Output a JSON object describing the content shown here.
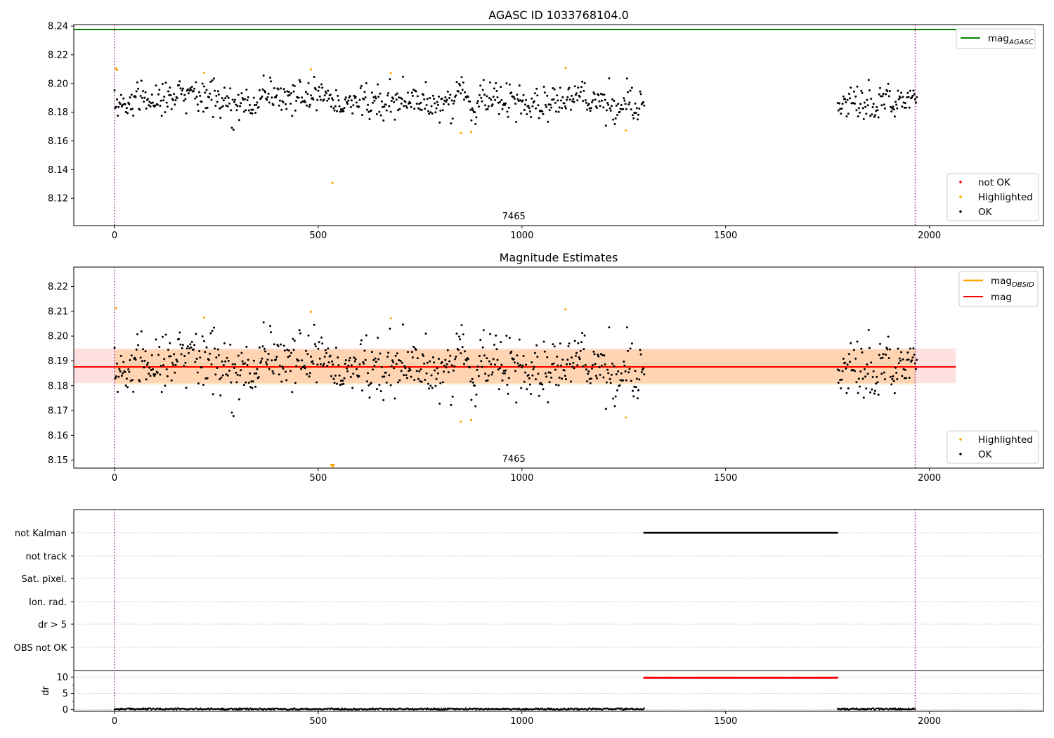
{
  "chart_data": [
    {
      "id": "p1",
      "type": "scatter",
      "title": "AGASC ID 1033768104.0",
      "xlim": [
        -100,
        2280
      ],
      "ylim": [
        8.101,
        8.241
      ],
      "xticks": [
        0,
        500,
        1000,
        1500,
        2000
      ],
      "yticks": [
        8.12,
        8.14,
        8.16,
        8.18,
        8.2,
        8.22,
        8.24
      ],
      "ytick_labels": [
        "8.12",
        "8.14",
        "8.16",
        "8.18",
        "8.20",
        "8.22",
        "8.24"
      ],
      "obsid_label": "7465",
      "obsid_label_x": 980,
      "vlines": [
        0,
        1965
      ],
      "lines": [
        {
          "name": "mag",
          "sub": "AGASC",
          "color": "#008000",
          "y": 8.2376,
          "x0": -100,
          "x1": 2280
        }
      ],
      "line_legend": [
        "mag_AGASC"
      ],
      "points_legend": [
        {
          "label": "not OK",
          "color": "#ff0000"
        },
        {
          "label": "Highlighted",
          "color": "#ffa500"
        },
        {
          "label": "OK",
          "color": "#000000"
        }
      ],
      "highlighted": [
        {
          "x": 4,
          "y": 8.2105
        },
        {
          "x": 6,
          "y": 8.2095
        },
        {
          "x": 220,
          "y": 8.2075
        },
        {
          "x": 482,
          "y": 8.2098
        },
        {
          "x": 535,
          "y": 8.1308
        },
        {
          "x": 678,
          "y": 8.2072
        },
        {
          "x": 850,
          "y": 8.1655
        },
        {
          "x": 875,
          "y": 8.1662
        },
        {
          "x": 1107,
          "y": 8.2108
        },
        {
          "x": 1255,
          "y": 8.1672
        }
      ],
      "ok_segments": [
        {
          "x0": 0,
          "x1": 1300,
          "center": 8.188,
          "spread": 0.0085
        },
        {
          "x0": 1775,
          "x1": 1970,
          "center": 8.187,
          "spread": 0.0085
        }
      ]
    },
    {
      "id": "p2",
      "type": "scatter",
      "title": "Magnitude Estimates",
      "xlim": [
        -100,
        2280
      ],
      "ylim": [
        8.1468,
        8.2278
      ],
      "xticks": [
        0,
        500,
        1000,
        1500,
        2000
      ],
      "yticks": [
        8.15,
        8.16,
        8.17,
        8.18,
        8.19,
        8.2,
        8.21,
        8.22
      ],
      "ytick_labels": [
        "8.15",
        "8.16",
        "8.17",
        "8.18",
        "8.19",
        "8.20",
        "8.21",
        "8.22"
      ],
      "obsid_label": "7465",
      "obsid_label_x": 980,
      "vlines": [
        0,
        1965
      ],
      "mag": 8.1876,
      "mag_band": [
        8.181,
        8.195
      ],
      "mag_obsid_band": [
        8.1805,
        8.1945
      ],
      "band_x": [
        -100,
        2065
      ],
      "obsid_band_x": [
        0,
        1965
      ],
      "line_legend": [
        {
          "name": "mag",
          "sub": "OBSID",
          "color": "#ffa500"
        },
        {
          "name": "mag",
          "sub": "",
          "color": "#ff0000"
        }
      ],
      "points_legend": [
        {
          "label": "Highlighted",
          "color": "#ffa500"
        },
        {
          "label": "OK",
          "color": "#000000"
        }
      ],
      "highlighted": [
        {
          "x": 4,
          "y": 8.2112
        },
        {
          "x": 220,
          "y": 8.2075
        },
        {
          "x": 482,
          "y": 8.2098
        },
        {
          "x": 678,
          "y": 8.2072
        },
        {
          "x": 850,
          "y": 8.1655
        },
        {
          "x": 875,
          "y": 8.1662
        },
        {
          "x": 1107,
          "y": 8.2108
        },
        {
          "x": 1255,
          "y": 8.1672
        }
      ],
      "clipped_marker_x": 535,
      "ok_segments": [
        {
          "x0": 0,
          "x1": 1300,
          "center": 8.188,
          "spread": 0.0085
        },
        {
          "x0": 1775,
          "x1": 1970,
          "center": 8.187,
          "spread": 0.0085
        }
      ]
    },
    {
      "id": "p3",
      "type": "scatter",
      "xlim": [
        -100,
        2280
      ],
      "xticks": [
        0,
        500,
        1000,
        1500,
        2000
      ],
      "vlines": [
        0,
        1965
      ],
      "flag_labels": [
        "not Kalman",
        "not track",
        "Sat. pixel.",
        "Ion. rad.",
        "dr > 5",
        "OBS not OK"
      ],
      "flags": [
        {
          "label": "not Kalman",
          "x0": 1300,
          "x1": 1775
        }
      ],
      "dr": {
        "ylabel": "dr",
        "ylim": [
          -0.5,
          12
        ],
        "yticks": [
          0,
          5,
          10
        ],
        "ytick_labels": [
          "0",
          "5",
          "10"
        ],
        "low_segments": [
          {
            "x0": 0,
            "x1": 1300,
            "value": 0.2
          },
          {
            "x0": 1775,
            "x1": 1965,
            "value": 0.2
          }
        ],
        "high_segment": {
          "x0": 1300,
          "x1": 1775,
          "value": 9.8
        }
      }
    }
  ]
}
